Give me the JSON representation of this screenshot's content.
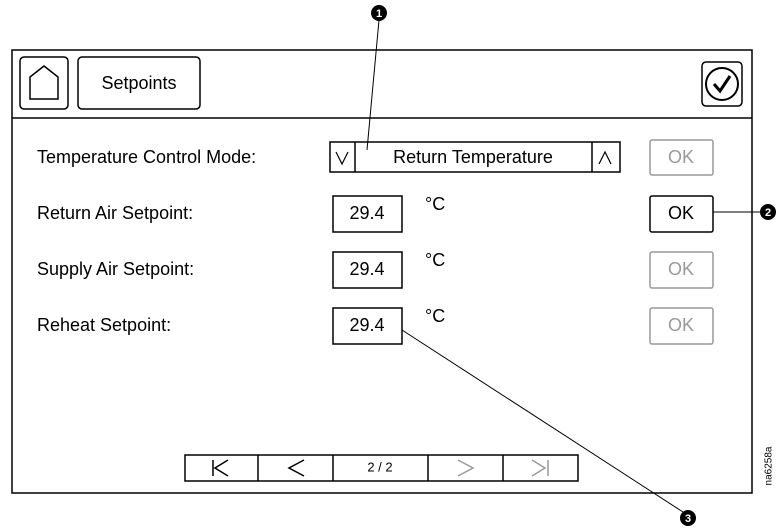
{
  "header": {
    "title": "Setpoints"
  },
  "mode_row": {
    "label": "Temperature Control Mode:",
    "value": "Return Temperature",
    "ok": "OK"
  },
  "rows": [
    {
      "label": "Return Air Setpoint:",
      "value": "29.4",
      "unit": "°C",
      "ok": "OK"
    },
    {
      "label": "Supply Air Setpoint:",
      "value": "29.4",
      "unit": "°C",
      "ok": "OK"
    },
    {
      "label": "Reheat Setpoint:",
      "value": "29.4",
      "unit": "°C",
      "ok": "OK"
    }
  ],
  "pager": {
    "label": "2 / 2"
  },
  "callouts": [
    "1",
    "2",
    "3"
  ],
  "figure_id": "na6258a"
}
